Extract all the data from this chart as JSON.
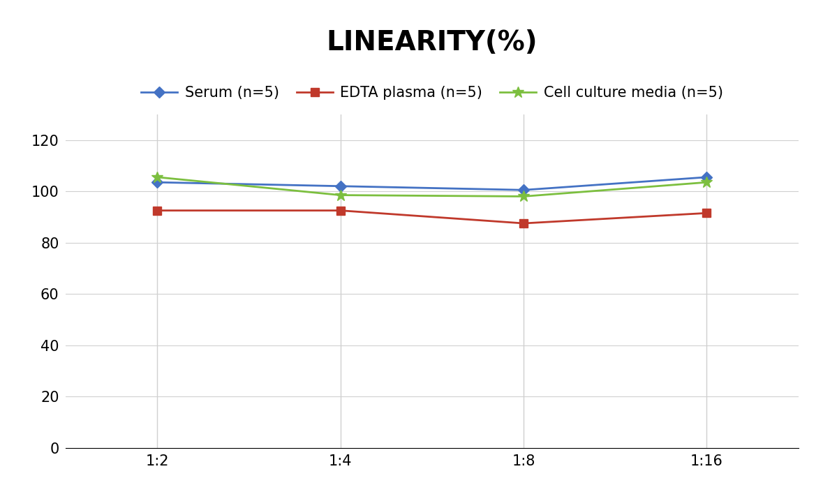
{
  "title": "LINEARITY(%)",
  "x_labels": [
    "1:2",
    "1:4",
    "1:8",
    "1:16"
  ],
  "x_positions": [
    1,
    2,
    3,
    4
  ],
  "series": [
    {
      "name": "Serum (n=5)",
      "values": [
        103.5,
        102.0,
        100.5,
        105.5
      ],
      "color": "#4472C4",
      "marker": "D",
      "marker_size": 8,
      "linewidth": 2.0
    },
    {
      "name": "EDTA plasma (n=5)",
      "values": [
        92.5,
        92.5,
        87.5,
        91.5
      ],
      "color": "#C0392B",
      "marker": "s",
      "marker_size": 8,
      "linewidth": 2.0
    },
    {
      "name": "Cell culture media (n=5)",
      "values": [
        105.5,
        98.5,
        98.0,
        103.5
      ],
      "color": "#7CBF3F",
      "marker": "*",
      "marker_size": 12,
      "linewidth": 2.0
    }
  ],
  "ylim": [
    0,
    130
  ],
  "yticks": [
    0,
    20,
    40,
    60,
    80,
    100,
    120
  ],
  "background_color": "#ffffff",
  "title_fontsize": 28,
  "tick_fontsize": 15,
  "legend_fontsize": 15,
  "grid_color": "#d0d0d0"
}
